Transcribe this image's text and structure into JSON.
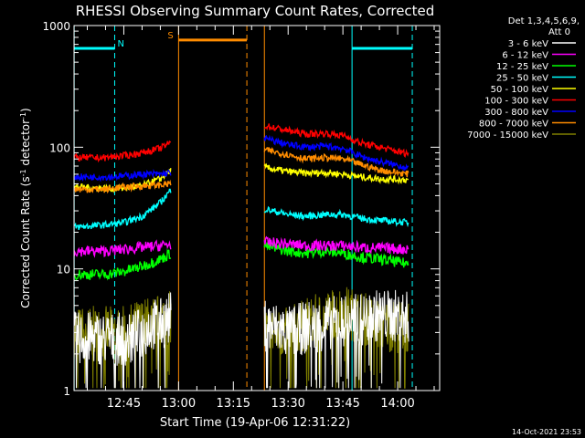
{
  "chart_data": {
    "type": "line",
    "title": "RHESSI Observing Summary Count Rates, Corrected",
    "xlabel": "Start Time (19-Apr-06 12:31:22)",
    "ylabel": "Corrected Count Rate (s⁻¹ detector⁻¹)",
    "ylabel_parts": {
      "main": "Corrected Count Rate (s",
      "exp1": "-1",
      "mid": " detector",
      "exp2": "-1",
      "end": ")"
    },
    "y_scale": "log",
    "ylim": [
      1,
      1000
    ],
    "x_tick_labels": [
      "12:45",
      "13:00",
      "13:15",
      "13:30",
      "13:45",
      "14:00"
    ],
    "x_tick_minutes": [
      45,
      60,
      75,
      90,
      105,
      120
    ],
    "xlim_minutes": [
      31.37,
      131.5
    ],
    "y_tick_labels": [
      "1",
      "10",
      "100",
      "1000"
    ],
    "y_tick_values": [
      1,
      10,
      100,
      1000
    ],
    "legend_header": [
      "Det 1,3,4,5,6,9,",
      "Att 0"
    ],
    "legend_position": "right",
    "timestamp": "14-Oct-2021 23:53",
    "series": [
      {
        "name": "3 - 6 keV",
        "color": "#ffffff",
        "seg1": [
          [
            31.4,
            2.7
          ],
          [
            37,
            2.7
          ],
          [
            47,
            2.6
          ],
          [
            53,
            3.5
          ],
          [
            55,
            3.5
          ],
          [
            58,
            4
          ]
        ],
        "seg2": [
          [
            83.5,
            3.5
          ],
          [
            90,
            3.0
          ],
          [
            95,
            3.3
          ],
          [
            100,
            3.5
          ],
          [
            105,
            3.8
          ],
          [
            110,
            3.8
          ],
          [
            115,
            4.2
          ],
          [
            123,
            4.0
          ]
        ]
      },
      {
        "name": "6 - 12 keV",
        "color": "#ff00ff",
        "seg1": [
          [
            31.4,
            14
          ],
          [
            40,
            14
          ],
          [
            45,
            14.5
          ],
          [
            50,
            15
          ],
          [
            55,
            15.5
          ],
          [
            58,
            16
          ]
        ],
        "seg2": [
          [
            83.5,
            16.5
          ],
          [
            90,
            16
          ],
          [
            95,
            15.5
          ],
          [
            105,
            15.5
          ],
          [
            110,
            15
          ],
          [
            123,
            14.5
          ]
        ]
      },
      {
        "name": "12 - 25 keV",
        "color": "#00ff00",
        "seg1": [
          [
            31.4,
            9
          ],
          [
            40,
            9
          ],
          [
            45,
            9.5
          ],
          [
            50,
            10.5
          ],
          [
            55,
            12
          ],
          [
            58,
            13.5
          ]
        ],
        "seg2": [
          [
            83.5,
            15.5
          ],
          [
            90,
            14
          ],
          [
            95,
            13.5
          ],
          [
            100,
            14
          ],
          [
            105,
            13.5
          ],
          [
            110,
            12.5
          ],
          [
            115,
            12
          ],
          [
            123,
            11
          ]
        ]
      },
      {
        "name": "25 - 50 keV",
        "color": "#00ffff",
        "seg1": [
          [
            31.4,
            22
          ],
          [
            40,
            23
          ],
          [
            45,
            24
          ],
          [
            50,
            27
          ],
          [
            55,
            35
          ],
          [
            58,
            45
          ]
        ],
        "seg2": [
          [
            83.5,
            31
          ],
          [
            90,
            28
          ],
          [
            95,
            27
          ],
          [
            100,
            28
          ],
          [
            105,
            28
          ],
          [
            110,
            26
          ],
          [
            115,
            25
          ],
          [
            123,
            24
          ]
        ]
      },
      {
        "name": "50 - 100 keV",
        "color": "#ffff00",
        "seg1": [
          [
            31.4,
            47
          ],
          [
            40,
            46
          ],
          [
            45,
            46
          ],
          [
            50,
            48
          ],
          [
            55,
            55
          ],
          [
            58,
            65
          ]
        ],
        "seg2": [
          [
            83.5,
            68
          ],
          [
            90,
            63
          ],
          [
            95,
            61
          ],
          [
            100,
            62
          ],
          [
            105,
            60
          ],
          [
            110,
            57
          ],
          [
            115,
            55
          ],
          [
            123,
            54
          ]
        ]
      },
      {
        "name": "100 - 300 keV",
        "color": "#ff0000",
        "seg1": [
          [
            31.4,
            82
          ],
          [
            40,
            82
          ],
          [
            45,
            85
          ],
          [
            50,
            90
          ],
          [
            55,
            98
          ],
          [
            58,
            110
          ]
        ],
        "seg2": [
          [
            83.5,
            150
          ],
          [
            90,
            137
          ],
          [
            95,
            128
          ],
          [
            100,
            130
          ],
          [
            105,
            125
          ],
          [
            110,
            108
          ],
          [
            115,
            100
          ],
          [
            123,
            88
          ]
        ]
      },
      {
        "name": "300 - 800 keV",
        "color": "#0000ff",
        "seg1": [
          [
            31.4,
            57
          ],
          [
            40,
            57
          ],
          [
            45,
            58
          ],
          [
            50,
            60
          ],
          [
            55,
            60
          ],
          [
            58,
            62
          ]
        ],
        "seg2": [
          [
            83.5,
            118
          ],
          [
            90,
            105
          ],
          [
            95,
            100
          ],
          [
            100,
            102
          ],
          [
            105,
            98
          ],
          [
            110,
            84
          ],
          [
            115,
            76
          ],
          [
            123,
            68
          ]
        ]
      },
      {
        "name": "800 - 7000 keV",
        "color": "#ff8c00",
        "seg1": [
          [
            31.4,
            45
          ],
          [
            40,
            45
          ],
          [
            45,
            47
          ],
          [
            50,
            48
          ],
          [
            55,
            49
          ],
          [
            58,
            50
          ]
        ],
        "seg2": [
          [
            83.5,
            95
          ],
          [
            90,
            87
          ],
          [
            95,
            80
          ],
          [
            100,
            82
          ],
          [
            105,
            80
          ],
          [
            110,
            72
          ],
          [
            115,
            65
          ],
          [
            123,
            60
          ]
        ]
      },
      {
        "name": "7000 - 15000 keV",
        "color": "#808000",
        "seg1": [
          [
            31.4,
            3
          ],
          [
            40,
            3
          ],
          [
            45,
            3
          ],
          [
            50,
            3.5
          ],
          [
            55,
            3.8
          ],
          [
            58,
            4
          ]
        ],
        "seg2": [
          [
            83.5,
            3
          ],
          [
            90,
            3
          ],
          [
            95,
            3.5
          ],
          [
            100,
            4
          ],
          [
            105,
            4.5
          ],
          [
            110,
            4
          ],
          [
            115,
            3.5
          ],
          [
            123,
            3.3
          ]
        ]
      }
    ],
    "annotations": [
      {
        "type": "flag_bar",
        "label": "N",
        "color": "#00ffff",
        "x_start": 31.4,
        "x_end": 42.5,
        "y": 650
      },
      {
        "type": "flag_bar",
        "label": "",
        "color": "#00ffff",
        "x_start": 107.5,
        "x_end": 124,
        "y": 650
      },
      {
        "type": "flag_bar",
        "label": "S",
        "color": "#ff8c00",
        "x_start": 60,
        "x_end": 78.7,
        "y": 760
      }
    ],
    "vertical_lines": [
      {
        "x": 31.4,
        "color": "#00ffff",
        "style": "solid"
      },
      {
        "x": 42.5,
        "color": "#00ffff",
        "style": "dashed"
      },
      {
        "x": 60,
        "color": "#ff8c00",
        "style": "solid"
      },
      {
        "x": 78.7,
        "color": "#ff8c00",
        "style": "dashed"
      },
      {
        "x": 83.5,
        "color": "#ff8c00",
        "style": "solid"
      },
      {
        "x": 107.5,
        "color": "#00ffff",
        "style": "solid"
      },
      {
        "x": 124,
        "color": "#00ffff",
        "style": "dashed"
      }
    ]
  }
}
